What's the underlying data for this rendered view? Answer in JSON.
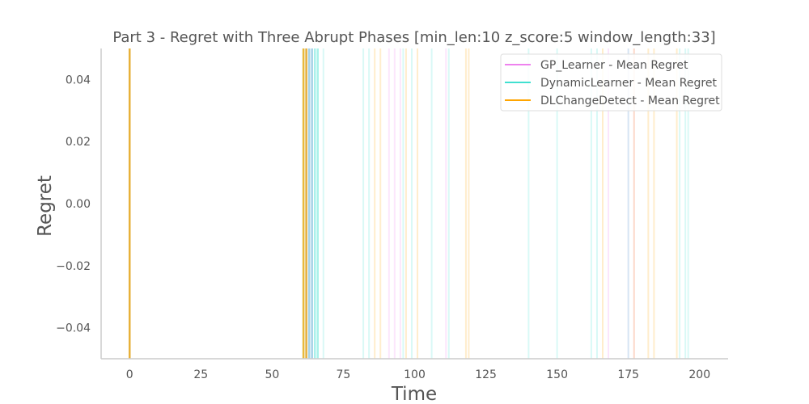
{
  "chart_data": {
    "type": "line",
    "title": "Part 3 - Regret with Three Abrupt Phases [min_len:10 z_score:5 window_length:33]",
    "xlabel": "Time",
    "ylabel": "Regret",
    "xlim": [
      -10,
      210
    ],
    "ylim": [
      -0.05,
      0.05
    ],
    "xticks": [
      0,
      25,
      50,
      75,
      100,
      125,
      150,
      175,
      200
    ],
    "xtick_labels": [
      "0",
      "25",
      "50",
      "75",
      "100",
      "125",
      "150",
      "175",
      "200"
    ],
    "yticks": [
      -0.04,
      -0.02,
      0.0,
      0.02,
      0.04
    ],
    "ytick_labels": [
      "−0.04",
      "−0.02",
      "0.00",
      "0.02",
      "0.04"
    ],
    "grid": false,
    "legend_position": "top-right",
    "series": [
      {
        "name": "GP_Learner - Mean Regret",
        "color": "#ee82ee",
        "vertical_lines_x": [
          0,
          62,
          63,
          64,
          91,
          93,
          95,
          111,
          168,
          175,
          177
        ]
      },
      {
        "name": "DynamicLearner - Mean Regret",
        "color": "#40e0d0",
        "vertical_lines_x": [
          0,
          61,
          62,
          63,
          64,
          65,
          66,
          68,
          82,
          84,
          96,
          99,
          106,
          112,
          140,
          150,
          162,
          164,
          175,
          193,
          195,
          196
        ]
      },
      {
        "name": "DLChangeDetect - Mean Regret",
        "color": "#ffa500",
        "vertical_lines_x": [
          0,
          61,
          62,
          86,
          88,
          97,
          101,
          118,
          119,
          166,
          177,
          182,
          184,
          192
        ]
      }
    ]
  }
}
